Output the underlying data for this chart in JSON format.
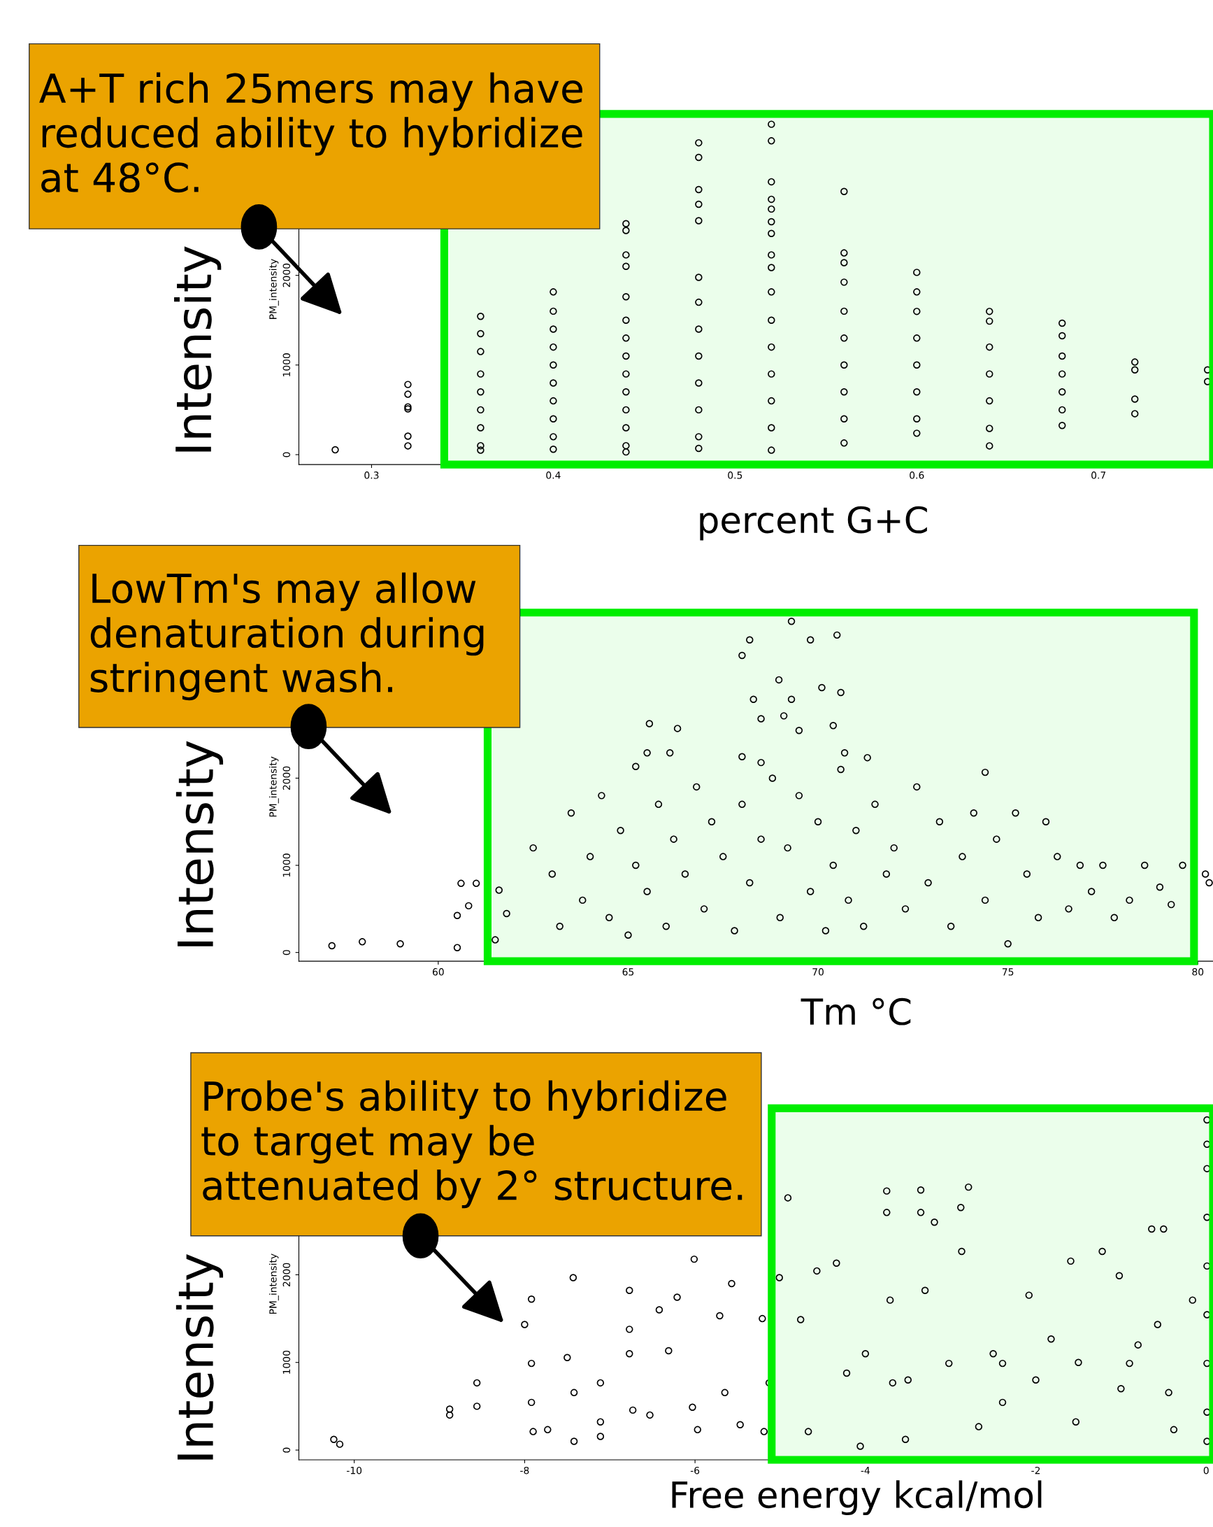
{
  "chart_data": [
    {
      "type": "scatter",
      "xlabel": "percent G+C",
      "ylabel": "PM_intensity",
      "marker": "circle",
      "grid": false,
      "annotations": [
        "A+T rich 25mers may have\nreduced ability to hybridize\nat 48°C.",
        "Intensity"
      ],
      "bands": [
        {
          "axis": "x",
          "from": 0.34,
          "to": 0.763,
          "color": "#00ee00"
        }
      ],
      "xlim": [
        0.26,
        0.763
      ],
      "ylim": [
        -110,
        3800
      ],
      "xticks": [
        0.3,
        0.4,
        0.5,
        0.6,
        0.7
      ],
      "yticks": [
        0,
        1000,
        2000
      ],
      "series": [
        {
          "color": "#000000",
          "x": [
            0.28,
            0.32,
            0.32,
            0.32,
            0.32,
            0.32,
            0.32,
            0.36,
            0.36,
            0.36,
            0.36,
            0.36,
            0.36,
            0.36,
            0.36,
            0.36,
            0.4,
            0.4,
            0.4,
            0.4,
            0.4,
            0.4,
            0.4,
            0.4,
            0.4,
            0.4,
            0.44,
            0.44,
            0.44,
            0.44,
            0.44,
            0.44,
            0.44,
            0.44,
            0.44,
            0.44,
            0.44,
            0.44,
            0.44,
            0.44,
            0.48,
            0.48,
            0.48,
            0.48,
            0.48,
            0.48,
            0.48,
            0.48,
            0.48,
            0.48,
            0.48,
            0.48,
            0.48,
            0.52,
            0.52,
            0.52,
            0.52,
            0.52,
            0.52,
            0.52,
            0.52,
            0.52,
            0.52,
            0.52,
            0.52,
            0.52,
            0.52,
            0.52,
            0.52,
            0.56,
            0.56,
            0.56,
            0.56,
            0.56,
            0.56,
            0.56,
            0.56,
            0.56,
            0.56,
            0.6,
            0.6,
            0.6,
            0.6,
            0.6,
            0.6,
            0.6,
            0.6,
            0.64,
            0.64,
            0.64,
            0.64,
            0.64,
            0.64,
            0.64,
            0.68,
            0.68,
            0.68,
            0.68,
            0.68,
            0.68,
            0.68,
            0.72,
            0.72,
            0.72,
            0.72,
            0.76,
            0.76
          ],
          "values": [
            54,
            783,
            674,
            533,
            511,
            207,
            98,
            1543,
            1350,
            1150,
            900,
            700,
            500,
            300,
            100,
            50,
            1815,
            1600,
            1400,
            1200,
            1000,
            800,
            600,
            400,
            200,
            60,
            2576,
            2500,
            2228,
            2100,
            1761,
            1500,
            1300,
            1100,
            900,
            700,
            500,
            300,
            100,
            30,
            3478,
            3315,
            2957,
            2793,
            2609,
            1978,
            1700,
            1400,
            1100,
            800,
            500,
            200,
            70,
            3685,
            3500,
            3043,
            2848,
            2739,
            2598,
            2467,
            2228,
            2087,
            1815,
            1500,
            1200,
            900,
            600,
            300,
            50,
            2935,
            2250,
            2141,
            1924,
            1600,
            1300,
            1000,
            700,
            400,
            130,
            2033,
            1815,
            1598,
            1300,
            1000,
            700,
            400,
            239,
            1598,
            1489,
            1200,
            900,
            600,
            293,
            98,
            1467,
            1326,
            1100,
            900,
            700,
            500,
            326,
            1033,
            946,
            620,
            457,
            946,
            815
          ]
        }
      ]
    },
    {
      "type": "scatter",
      "xlabel": "Tm °C",
      "ylabel": "PM_intensity",
      "marker": "circle",
      "grid": false,
      "annotations": [
        "LowTm's may allow\ndenaturation during\nstringent wash.",
        "Intensity"
      ],
      "bands": [
        {
          "axis": "x",
          "from": 61.3,
          "to": 79.9,
          "color": "#00ee00"
        }
      ],
      "xlim": [
        56.33,
        80.4
      ],
      "ylim": [
        -100,
        3900
      ],
      "xticks": [
        60,
        65,
        70,
        75,
        80
      ],
      "yticks": [
        0,
        1000,
        2000
      ],
      "series": [
        {
          "color": "#000000",
          "x": [
            57.2,
            58.0,
            59.0,
            60.5,
            60.6,
            61.0,
            60.5,
            60.8,
            61.6,
            61.8,
            61.5,
            69.3,
            68.2,
            69.8,
            70.5,
            68.0,
            68.97,
            70.1,
            70.6,
            68.3,
            69.3,
            68.5,
            69.1,
            69.5,
            70.4,
            65.56,
            66.3,
            65.5,
            66.1,
            65.2,
            68.0,
            68.5,
            70.7,
            71.3,
            74.4,
            62.5,
            63,
            63.2,
            63.5,
            63.8,
            64,
            64.3,
            64.5,
            64.8,
            65,
            65.2,
            65.5,
            65.8,
            66,
            66.2,
            66.5,
            66.8,
            67,
            67.2,
            67.5,
            67.8,
            68,
            68.2,
            68.5,
            68.8,
            69,
            69.2,
            69.5,
            69.8,
            70,
            70.2,
            70.4,
            70.6,
            70.8,
            71,
            71.2,
            71.5,
            71.8,
            72,
            72.3,
            72.6,
            72.9,
            73.2,
            73.5,
            73.8,
            74.1,
            74.4,
            74.7,
            75,
            75.2,
            75.5,
            75.8,
            76,
            76.3,
            76.6,
            76.9,
            77.2,
            77.5,
            77.8,
            78.2,
            78.6,
            79,
            79.3,
            79.6,
            80.2,
            80.3
          ],
          "values": [
            78,
            123,
            100,
            56,
            793,
            793,
            425,
            536,
            715,
            447,
            145,
            3799,
            3587,
            3587,
            3642,
            3408,
            3128,
            3039,
            2983,
            2905,
            2905,
            2682,
            2715,
            2547,
            2603,
            2626,
            2570,
            2290,
            2290,
            2134,
            2246,
            2179,
            2290,
            2235,
            2067,
            1200,
            900,
            300,
            1600,
            600,
            1100,
            1800,
            400,
            1400,
            200,
            1000,
            700,
            1700,
            300,
            1300,
            900,
            1900,
            500,
            1500,
            1100,
            250,
            1700,
            800,
            1300,
            2000,
            400,
            1200,
            1800,
            700,
            1500,
            250,
            1000,
            2100,
            600,
            1400,
            300,
            1700,
            900,
            1200,
            500,
            1900,
            800,
            1500,
            300,
            1100,
            1600,
            600,
            1300,
            100,
            1600,
            900,
            400,
            1500,
            1100,
            500,
            1000,
            700,
            1000,
            400,
            600,
            1000,
            750,
            550,
            1000,
            900,
            800
          ]
        }
      ]
    },
    {
      "type": "scatter",
      "xlabel": "Free energy kcal/mol",
      "ylabel": "PM_intensity",
      "marker": "circle",
      "grid": false,
      "annotations": [
        "Probe's ability to hybridize\nto target may be\nattenuated by 2° structure.",
        "Intensity"
      ],
      "bands": [
        {
          "axis": "x",
          "from": -5.1,
          "to": 0.08,
          "color": "#00ee00"
        }
      ],
      "xlim": [
        -10.65,
        0.08
      ],
      "ylim": [
        -111,
        3900
      ],
      "xticks": [
        -10,
        -8,
        -6,
        -4,
        -2,
        0
      ],
      "yticks": [
        0,
        1000,
        2000
      ],
      "series": [
        {
          "color": "#000000",
          "x": [
            -10.24,
            -10.17,
            -8.88,
            -8.88,
            -8.56,
            -8.56,
            -8,
            -7.92,
            -7.92,
            -7.92,
            -7.9,
            -7.73,
            -7.5,
            -7.43,
            -7.42,
            -7.42,
            -7.11,
            -7.11,
            -7.11,
            -6.77,
            -6.77,
            -6.77,
            -6.73,
            -6.53,
            -6.42,
            -6.31,
            -6.21,
            -6.01,
            -6.03,
            -5.97,
            -5.71,
            -5.65,
            -5.57,
            -5.47,
            -5.21,
            -5.19,
            -5.13,
            -5.01,
            -4.91,
            -4.76,
            -4.67,
            -4.57,
            -4.34,
            -4.22,
            -4.06,
            -3.75,
            -3.75,
            -3.71,
            -3.68,
            -3.53,
            -3.35,
            -3.35,
            -3.3,
            -3.19,
            -3.02,
            -2.88,
            -2.79,
            -2.87,
            -2.67,
            -2.39,
            -2.39,
            -2.08,
            -1.82,
            -1.59,
            -1.53,
            -1.22,
            -1.02,
            -0.9,
            -0.64,
            -0.5,
            -0.57,
            -0.44,
            -0.38,
            -0.16,
            0.01,
            0.01,
            0.01,
            0.01,
            0.01,
            0.01,
            0.01,
            0.01,
            0.01,
            -2.5,
            -2,
            -1.5,
            -1,
            -0.8,
            -3.5,
            -4
          ],
          "values": [
            122,
            67,
            467,
            400,
            767,
            500,
            1433,
            1722,
            989,
            544,
            211,
            233,
            1056,
            1967,
            656,
            100,
            767,
            322,
            156,
            1822,
            1378,
            1100,
            456,
            400,
            1600,
            1133,
            1744,
            2178,
            489,
            233,
            1533,
            656,
            1900,
            289,
            1500,
            211,
            767,
            1967,
            2878,
            1489,
            211,
            2044,
            2133,
            878,
            44,
            2956,
            2711,
            1711,
            767,
            122,
            2967,
            2711,
            1822,
            2600,
            989,
            2767,
            3000,
            2267,
            267,
            989,
            544,
            1767,
            1267,
            2156,
            322,
            2267,
            1989,
            989,
            2522,
            2522,
            1433,
            656,
            233,
            1711,
            3767,
            3489,
            3211,
            2656,
            2100,
            1544,
            989,
            433,
            100,
            1100,
            800,
            1000,
            700,
            1200,
            800,
            1100
          ]
        }
      ]
    }
  ]
}
